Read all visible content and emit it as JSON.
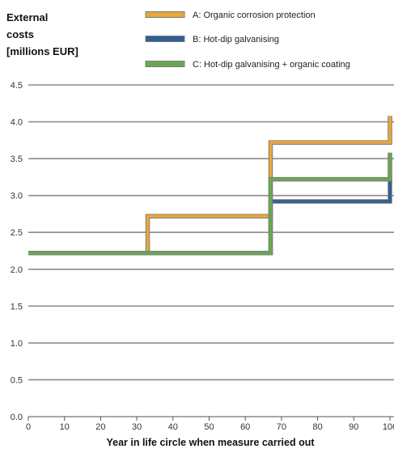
{
  "chart_data": {
    "type": "line",
    "step": true,
    "ylabel_lines": [
      "External",
      "costs",
      "[millions EUR]"
    ],
    "xlabel": "Year in life circle when measure carried out",
    "xlim": [
      0,
      100
    ],
    "ylim": [
      0,
      4.5
    ],
    "x_ticks": [
      "0",
      "10",
      "20",
      "30",
      "40",
      "50",
      "60",
      "70",
      "80",
      "90",
      "100"
    ],
    "y_ticks": [
      "0.0",
      "0.5",
      "1.0",
      "1.5",
      "2.0",
      "2.5",
      "3.0",
      "3.5",
      "4.0",
      "4.5"
    ],
    "grid": true,
    "legend_position": "top",
    "series": [
      {
        "name": "A: Organic corrosion protection",
        "color": "#e8a83a",
        "x": [
          0,
          33,
          33,
          67,
          67,
          100,
          100
        ],
        "y": [
          2.22,
          2.22,
          2.72,
          2.72,
          3.72,
          3.72,
          4.08
        ]
      },
      {
        "name": "B: Hot-dip galvanising",
        "color": "#2f5f94",
        "x": [
          0,
          67,
          67,
          100,
          100
        ],
        "y": [
          2.22,
          2.22,
          2.92,
          2.92,
          3.28
        ]
      },
      {
        "name": "C: Hot-dip galvanising + organic coating",
        "color": "#6aa84f",
        "x": [
          0,
          67,
          67,
          100,
          100
        ],
        "y": [
          2.22,
          2.22,
          3.22,
          3.22,
          3.58
        ]
      }
    ]
  }
}
